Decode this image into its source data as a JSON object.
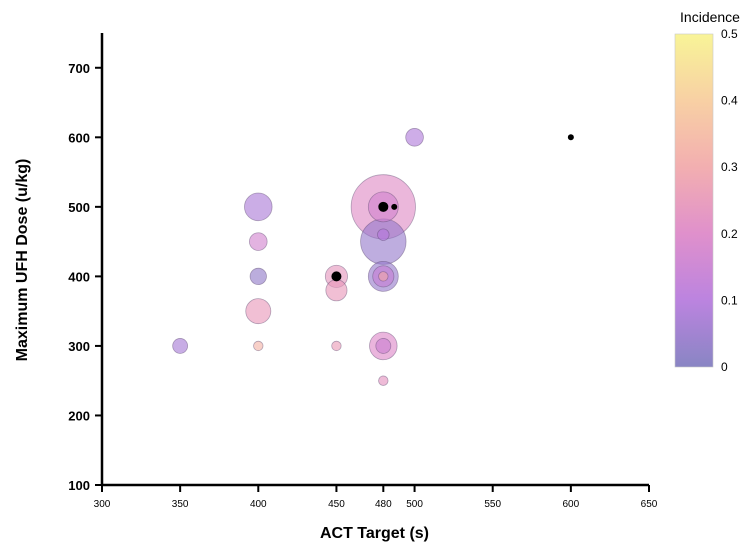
{
  "chart_data": {
    "type": "scatter",
    "title": "",
    "xlabel": "ACT Target (s)",
    "ylabel": "Maximum UFH Dose (u/kg)",
    "xlim": [
      300,
      650
    ],
    "ylim": [
      100,
      750
    ],
    "x_ticks": [
      300,
      350,
      400,
      450,
      480,
      500,
      550,
      600,
      650
    ],
    "y_ticks": [
      100,
      200,
      300,
      400,
      500,
      600,
      700
    ],
    "grid": false,
    "colorbar": {
      "title": "Incidence",
      "range": [
        0,
        0.5
      ],
      "ticks": [
        0,
        0.1,
        0.2,
        0.3,
        0.4,
        0.5
      ],
      "colormap": "plasma",
      "colors": [
        "#7c78bd",
        "#b476dc",
        "#dc84c6",
        "#f1a6a8",
        "#f7cb9a",
        "#f8f38c"
      ],
      "null_color": "#000000"
    },
    "points": [
      {
        "x": 480,
        "y": 500,
        "incidence": 0.21,
        "size": 4.6
      },
      {
        "x": 480,
        "y": 450,
        "incidence": 0.04,
        "size": 2.3
      },
      {
        "x": 480,
        "y": 400,
        "incidence": 0.04,
        "size": 1.0
      },
      {
        "x": 480,
        "y": 500,
        "incidence": 0.17,
        "size": 1.0
      },
      {
        "x": 480,
        "y": 300,
        "incidence": 0.2,
        "size": 0.85
      },
      {
        "x": 480,
        "y": 400,
        "incidence": 0.14,
        "size": 0.5
      },
      {
        "x": 480,
        "y": 460,
        "incidence": 0.1,
        "size": 0.15
      },
      {
        "x": 480,
        "y": 400,
        "incidence": 0.3,
        "size": 0.1
      },
      {
        "x": 480,
        "y": 300,
        "incidence": 0.15,
        "size": 0.25
      },
      {
        "x": 480,
        "y": 500,
        "incidence": null,
        "size": 0.2
      },
      {
        "x": 487,
        "y": 500,
        "incidence": null,
        "size": 0.05
      },
      {
        "x": 480,
        "y": 250,
        "incidence": 0.23,
        "size": 0.1
      },
      {
        "x": 400,
        "y": 500,
        "incidence": 0.08,
        "size": 0.85
      },
      {
        "x": 400,
        "y": 450,
        "incidence": 0.17,
        "size": 0.35
      },
      {
        "x": 400,
        "y": 400,
        "incidence": 0.03,
        "size": 0.3
      },
      {
        "x": 400,
        "y": 350,
        "incidence": 0.25,
        "size": 0.7
      },
      {
        "x": 400,
        "y": 300,
        "incidence": 0.33,
        "size": 0.1
      },
      {
        "x": 350,
        "y": 300,
        "incidence": 0.07,
        "size": 0.25
      },
      {
        "x": 450,
        "y": 400,
        "incidence": 0.24,
        "size": 0.55
      },
      {
        "x": 450,
        "y": 400,
        "incidence": null,
        "size": 0.15
      },
      {
        "x": 450,
        "y": 380,
        "incidence": 0.25,
        "size": 0.5
      },
      {
        "x": 450,
        "y": 300,
        "incidence": 0.26,
        "size": 0.1
      },
      {
        "x": 500,
        "y": 600,
        "incidence": 0.09,
        "size": 0.35
      },
      {
        "x": 600,
        "y": 600,
        "incidence": null,
        "size": 0.1
      }
    ]
  }
}
